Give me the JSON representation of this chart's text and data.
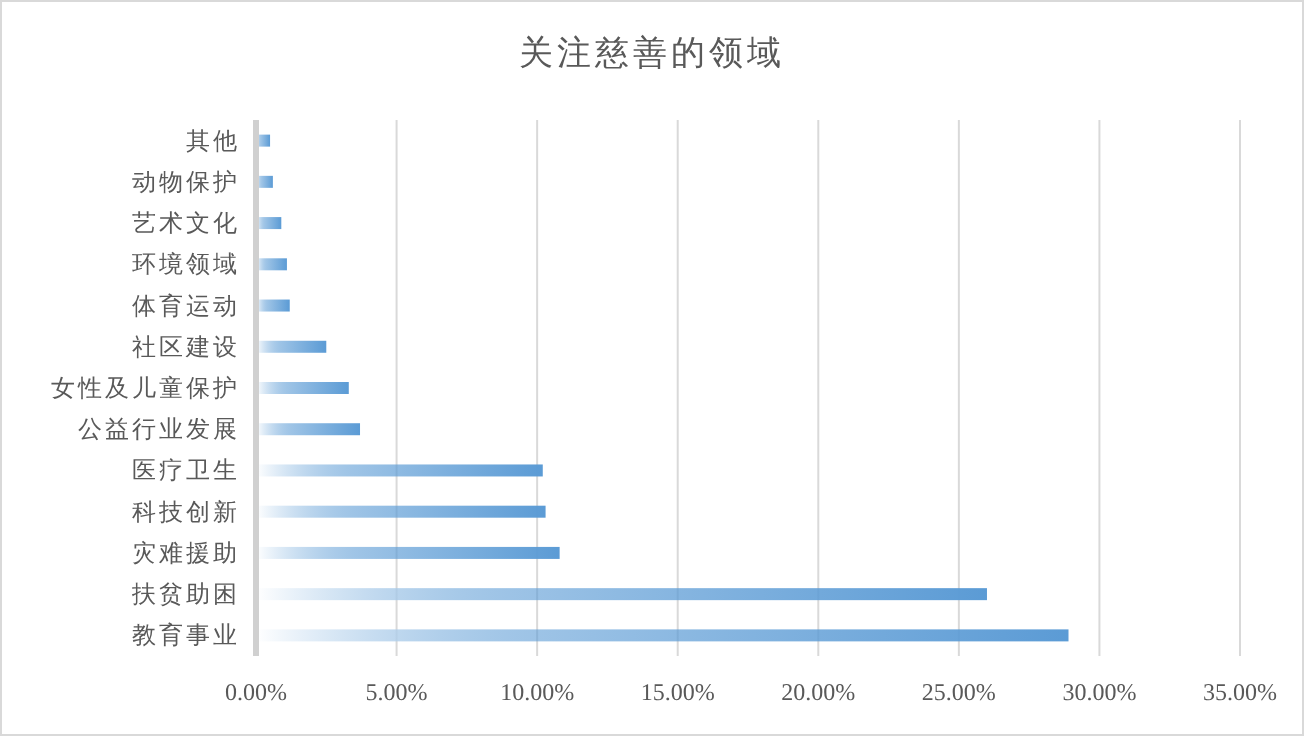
{
  "chart_data": {
    "type": "bar",
    "orientation": "horizontal",
    "title": "关注慈善的领域",
    "categories": [
      "其他",
      "动物保护",
      "艺术文化",
      "环境领域",
      "体育运动",
      "社区建设",
      "女性及儿童保护",
      "公益行业发展",
      "医疗卫生",
      "科技创新",
      "灾难援助",
      "扶贫助困",
      "教育事业"
    ],
    "values": [
      0.5,
      0.6,
      0.9,
      1.1,
      1.2,
      2.5,
      3.3,
      3.7,
      10.2,
      10.3,
      10.8,
      26.0,
      28.9
    ],
    "color": "#5b9bd5",
    "xlim": [
      0,
      35
    ],
    "xticks": [
      {
        "value": 0,
        "label": "0.00%"
      },
      {
        "value": 5,
        "label": "5.00%"
      },
      {
        "value": 10,
        "label": "10.00%"
      },
      {
        "value": 15,
        "label": "15.00%"
      },
      {
        "value": 20,
        "label": "20.00%"
      },
      {
        "value": 25,
        "label": "25.00%"
      },
      {
        "value": 30,
        "label": "30.00%"
      },
      {
        "value": 35,
        "label": "35.00%"
      }
    ],
    "grid": "x"
  }
}
